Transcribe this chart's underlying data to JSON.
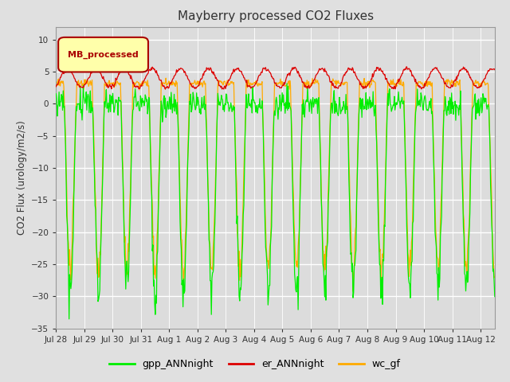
{
  "title": "Mayberry processed CO2 Fluxes",
  "ylabel": "CO2 Flux (urology/m2/s)",
  "ylim": [
    -35,
    12
  ],
  "yticks": [
    10,
    5,
    0,
    -5,
    -10,
    -15,
    -20,
    -25,
    -30,
    -35
  ],
  "background_color": "#e0e0e0",
  "plot_bg_color": "#dcdcdc",
  "legend_label": "MB_processed",
  "legend_box_color": "#ffffaa",
  "legend_box_edge": "#aa0000",
  "line_colors": {
    "gpp": "#00ee00",
    "er": "#dd0000",
    "wc": "#ffaa00"
  },
  "total_days": 15.5,
  "tick_labels": [
    "Jul 28",
    "Jul 29",
    "Jul 30",
    "Jul 31",
    "Aug 1",
    "Aug 2",
    "Aug 3",
    "Aug 4",
    "Aug 5",
    "Aug 6",
    "Aug 7",
    "Aug 8",
    "Aug 9",
    "Aug 10",
    "Aug 11",
    "Aug 12"
  ],
  "tick_positions": [
    0,
    1,
    2,
    3,
    4,
    5,
    6,
    7,
    8,
    9,
    10,
    11,
    12,
    13,
    14,
    15
  ]
}
